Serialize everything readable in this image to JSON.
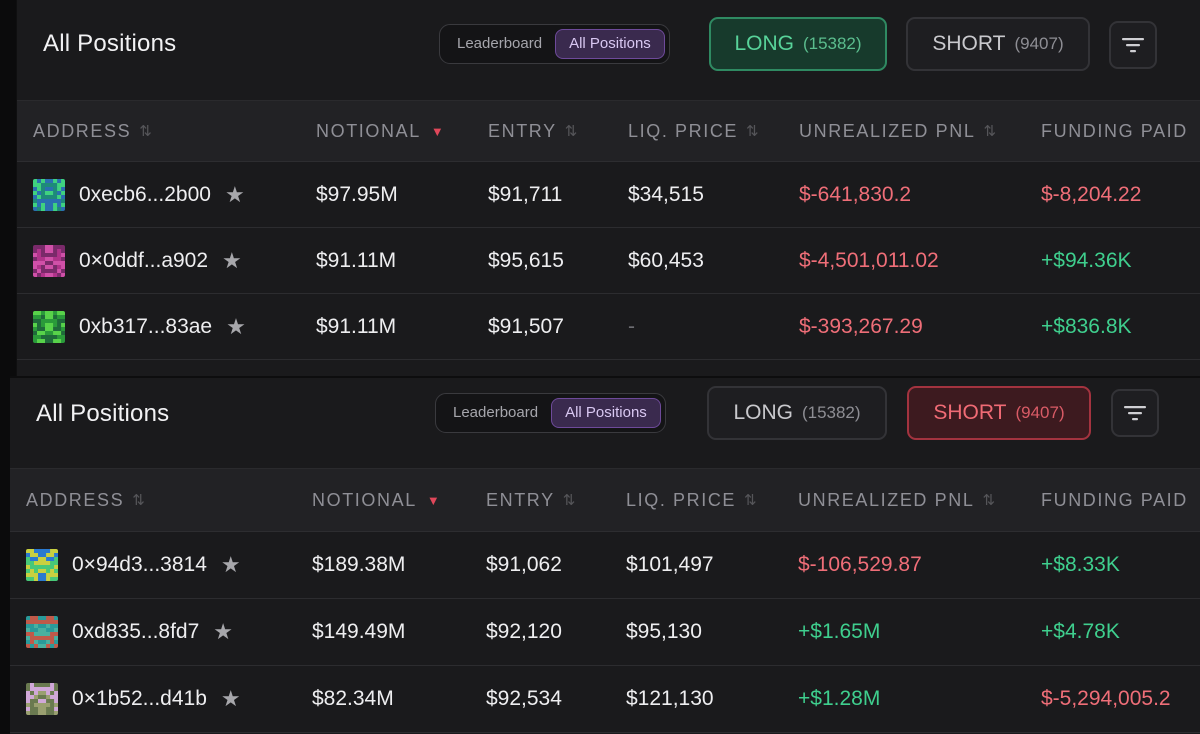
{
  "columns": {
    "address": "ADDRESS",
    "notional": "NOTIONAL",
    "entry": "ENTRY",
    "liq_price": "LIQ. PRICE",
    "unrealized_pnl": "UNREALIZED PNL",
    "funding_paid": "FUNDING PAID"
  },
  "icons": {
    "sort": "sort-icon",
    "sort_active": "sort-desc-icon",
    "star": "star-icon",
    "filter": "filter-icon"
  },
  "colors": {
    "positive": "#3fcf8e",
    "negative": "#ef6e78",
    "accent_purple": "#6e4a9a",
    "long_accent": "#2f8a62",
    "short_accent": "#a3333f"
  },
  "panels": [
    {
      "title": "All Positions",
      "view_tabs": [
        "Leaderboard",
        "All Positions"
      ],
      "active_view": "All Positions",
      "side_toggle": {
        "long": {
          "label": "LONG",
          "count": "(15382)"
        },
        "short": {
          "label": "SHORT",
          "count": "(9407)"
        },
        "active": "LONG"
      },
      "rows": [
        {
          "address": "0xecb6...2b00",
          "notional": "$97.95M",
          "entry": "$91,711",
          "liq_price": "$34,515",
          "unrealized_pnl": "$-641,830.2",
          "funding_paid": "$-8,204.22",
          "avatar_colors": [
            "#1e8a7a",
            "#3fd27f",
            "#2a6fb0"
          ]
        },
        {
          "address": "0×0ddf...a902",
          "notional": "$91.11M",
          "entry": "$95,615",
          "liq_price": "$60,453",
          "unrealized_pnl": "$-4,501,011.02",
          "funding_paid": "+$94.36K",
          "avatar_colors": [
            "#b0338a",
            "#d050a8",
            "#7a2a6a"
          ]
        },
        {
          "address": "0xb317...83ae",
          "notional": "$91.11M",
          "entry": "$91,507",
          "liq_price": "-",
          "unrealized_pnl": "$-393,267.29",
          "funding_paid": "+$836.8K",
          "avatar_colors": [
            "#2a9a3a",
            "#58d24a",
            "#1f6a3a"
          ]
        }
      ]
    },
    {
      "title": "All Positions",
      "view_tabs": [
        "Leaderboard",
        "All Positions"
      ],
      "active_view": "All Positions",
      "side_toggle": {
        "long": {
          "label": "LONG",
          "count": "(15382)"
        },
        "short": {
          "label": "SHORT",
          "count": "(9407)"
        },
        "active": "SHORT"
      },
      "rows": [
        {
          "address": "0×94d3...3814",
          "notional": "$189.38M",
          "entry": "$91,062",
          "liq_price": "$101,497",
          "unrealized_pnl": "$-106,529.87",
          "funding_paid": "+$8.33K",
          "avatar_colors": [
            "#2a7ad0",
            "#48c878",
            "#c8d040"
          ]
        },
        {
          "address": "0xd835...8fd7",
          "notional": "$149.49M",
          "entry": "$92,120",
          "liq_price": "$95,130",
          "unrealized_pnl": "+$1.65M",
          "funding_paid": "+$4.78K",
          "avatar_colors": [
            "#2a9a9a",
            "#c05a4a",
            "#4ab0a0"
          ]
        },
        {
          "address": "0×1b52...d41b",
          "notional": "$82.34M",
          "entry": "$92,534",
          "liq_price": "$121,130",
          "unrealized_pnl": "+$1.28M",
          "funding_paid": "$-5,294,005.2",
          "avatar_colors": [
            "#9aa070",
            "#d0a8d8",
            "#6a7a50"
          ]
        }
      ]
    }
  ]
}
